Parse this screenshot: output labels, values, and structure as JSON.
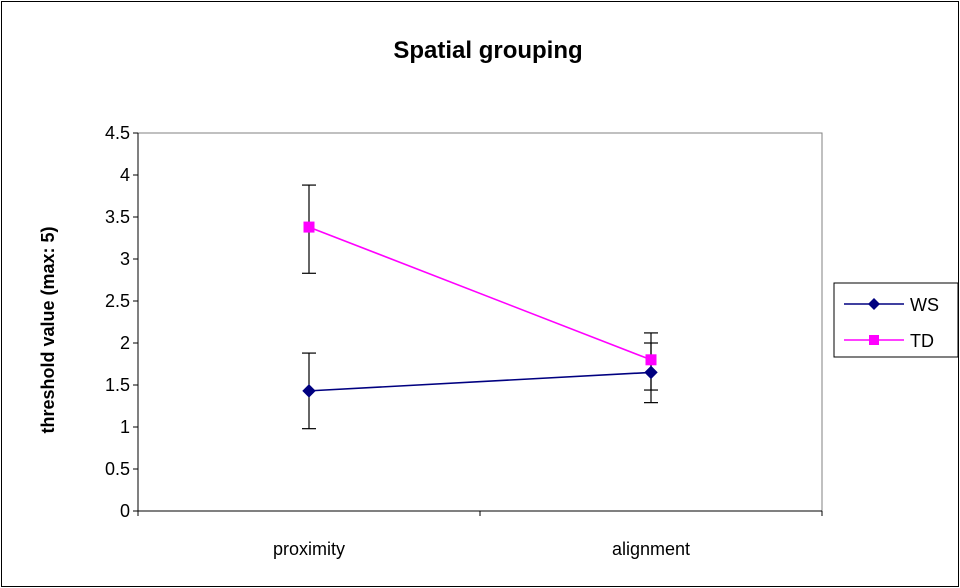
{
  "chart_data": {
    "type": "line",
    "title": "Spatial grouping",
    "xlabel": "",
    "ylabel": "threshold value (max: 5)",
    "categories": [
      "proximity",
      "alignment"
    ],
    "ylim": [
      0,
      4.5
    ],
    "yticks": [
      "0",
      "0.5",
      "1",
      "1.5",
      "2",
      "2.5",
      "3",
      "3.5",
      "4",
      "4.5"
    ],
    "grid": false,
    "legend_position": "right",
    "series": [
      {
        "name": "WS",
        "values": [
          1.43,
          1.65
        ],
        "error_low": [
          0.98,
          1.29
        ],
        "error_high": [
          1.88,
          2.0
        ],
        "color": "#000080",
        "marker": "diamond"
      },
      {
        "name": "TD",
        "values": [
          3.38,
          1.8
        ],
        "error_low": [
          2.83,
          1.44
        ],
        "error_high": [
          3.88,
          2.12
        ],
        "color": "#ff00ff",
        "marker": "square"
      }
    ]
  }
}
